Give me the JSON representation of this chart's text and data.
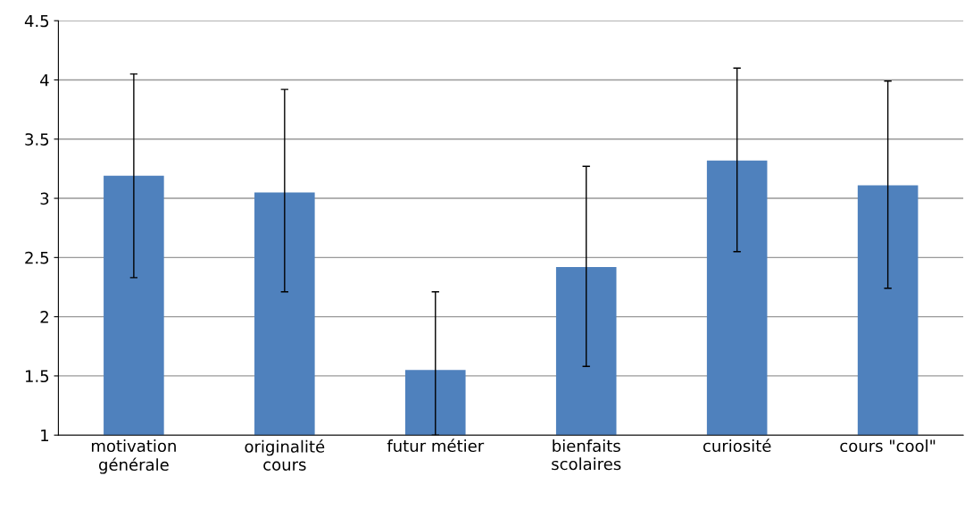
{
  "chart_data": {
    "type": "bar",
    "categories": [
      "motivation\ngénérale",
      "originalité\ncours",
      "futur métier",
      "bienfaits\nscolaires",
      "curiosité",
      "cours \"cool\""
    ],
    "values": [
      3.19,
      3.05,
      1.55,
      2.42,
      3.32,
      3.11
    ],
    "errors": [
      [
        2.33,
        4.05
      ],
      [
        2.21,
        3.92
      ],
      [
        1.0,
        2.21
      ],
      [
        1.58,
        3.27
      ],
      [
        2.55,
        4.1
      ],
      [
        2.24,
        3.99
      ]
    ],
    "color": "#4f81bd",
    "ylim": [
      1,
      4.5
    ],
    "yticks": [
      1,
      1.5,
      2,
      2.5,
      3,
      3.5,
      4,
      4.5
    ],
    "grid": "y",
    "legend": false
  }
}
